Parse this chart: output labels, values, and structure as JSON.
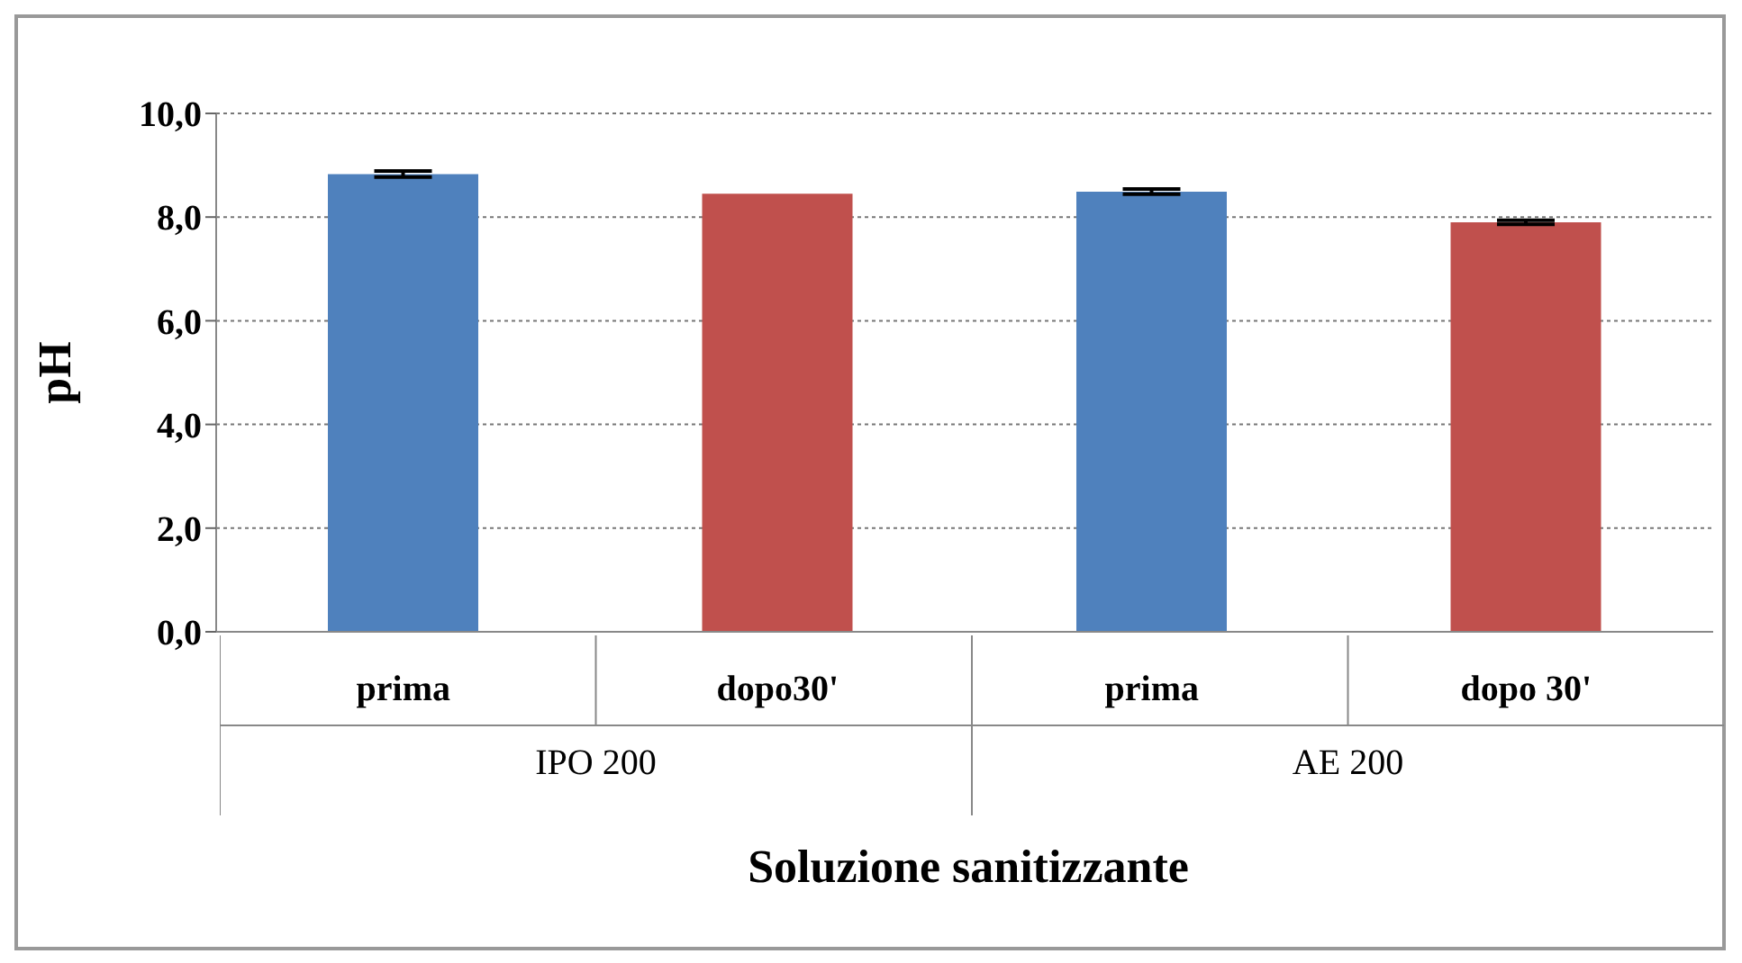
{
  "chart_data": {
    "type": "bar",
    "xlabel": "Soluzione sanitizzante",
    "ylabel": "pH",
    "categories": [
      "prima",
      "dopo30'",
      "prima",
      "dopo 30'"
    ],
    "values": [
      8.83,
      8.45,
      8.49,
      7.9
    ],
    "colors": [
      "#4f81bd",
      "#c0504d",
      "#4f81bd",
      "#c0504d"
    ],
    "errors": [
      0.06,
      null,
      0.05,
      0.04
    ],
    "ylim": [
      0,
      10
    ],
    "yticks": [
      {
        "value": 0,
        "label": "0,0"
      },
      {
        "value": 2,
        "label": "2,0"
      },
      {
        "value": 4,
        "label": "4,0"
      },
      {
        "value": 6,
        "label": "6,0"
      },
      {
        "value": 8,
        "label": "8,0"
      },
      {
        "value": 10,
        "label": "10,0"
      }
    ],
    "grid": "y",
    "annotations": [
      "IPO 200",
      "AE 200"
    ]
  }
}
